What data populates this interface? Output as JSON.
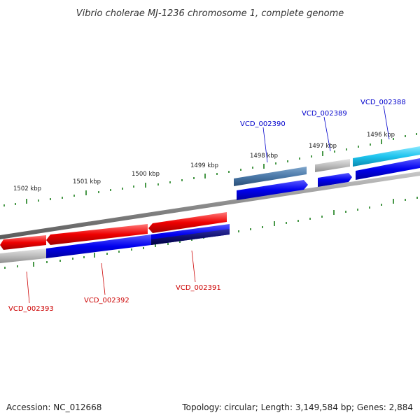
{
  "title": "Vibrio cholerae MJ-1236 chromosome 1, complete genome",
  "footer": {
    "accession": "Accession: NC_012668",
    "summary": "Topology: circular; Length: 3,149,584 bp; Genes: 2,884"
  },
  "position_labels": [
    "1502 kbp",
    "1501 kbp",
    "1500 kbp",
    "1499 kbp",
    "1498 kbp",
    "1497 kbp",
    "1496 kbp"
  ],
  "gene_labels": {
    "forward": [
      "VCD_002390",
      "VCD_002389",
      "VCD_002388"
    ],
    "reverse": [
      "VCD_002393",
      "VCD_002392",
      "VCD_002391"
    ]
  },
  "colors": {
    "forward_label": "#0000cc",
    "reverse_label": "#cc0000",
    "tick": "#1a7f1a",
    "backbone": "#8a8a8a"
  }
}
